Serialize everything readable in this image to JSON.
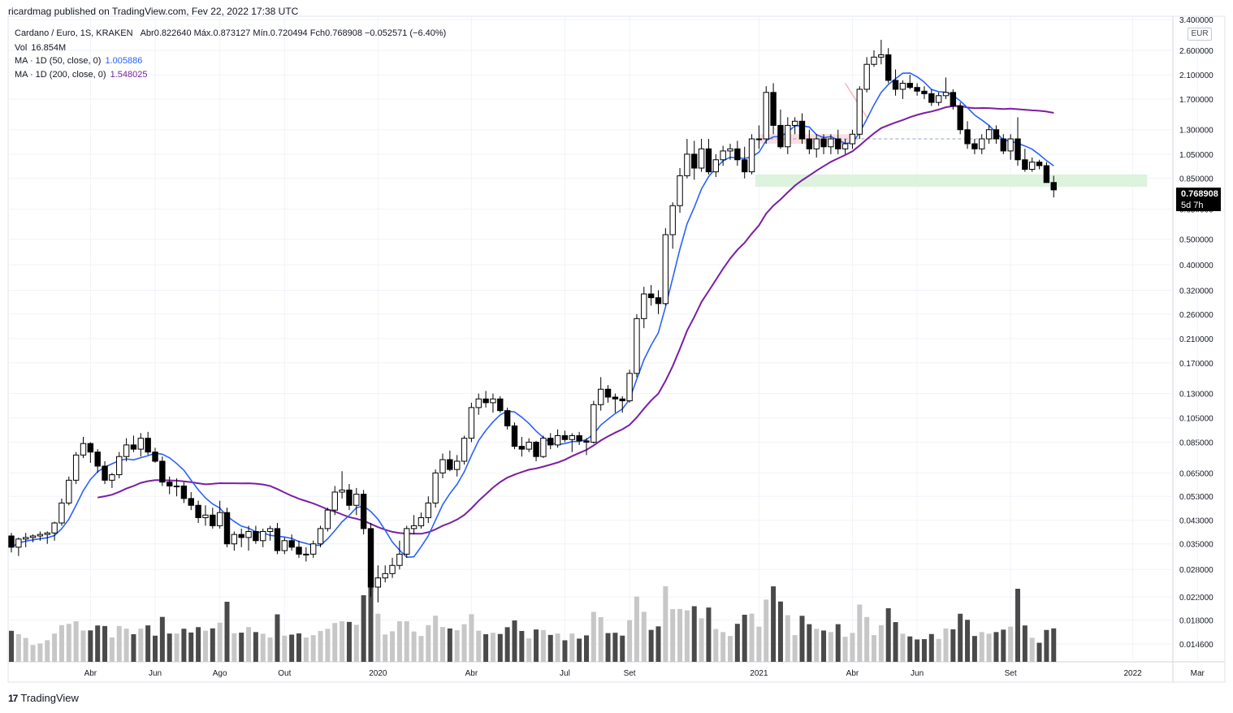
{
  "header": {
    "published": "ricardmag published on TradingView.com, Fev 22, 2022 17:38 UTC"
  },
  "legend": {
    "symbol": "Cardano / Euro, 1S, KRAKEN",
    "ohlc_text": "Abr0.822640  Máx.0.873127  Mín.0.720494  Fch0.768908  −0.052571 (−6.40%)",
    "vol_label": "Vol",
    "vol_value": "16.854M",
    "ma50_label": "MA · 1D (50, close, 0)",
    "ma50_value": "1.005886",
    "ma200_label": "MA · 1D (200, close, 0)",
    "ma200_value": "1.548025"
  },
  "price_axis": {
    "currency": "EUR",
    "labels": [
      "3.400000",
      "2.600000",
      "2.100000",
      "1.700000",
      "1.300000",
      "1.050000",
      "0.850000",
      "0.650000",
      "0.500000",
      "0.400000",
      "0.320000",
      "0.260000",
      "0.210000",
      "0.170000",
      "0.130000",
      "0.105000",
      "0.085000",
      "0.065000",
      "0.053000",
      "0.043000",
      "0.035000",
      "0.028000",
      "0.022000",
      "0.018000",
      "0.014600"
    ]
  },
  "price_tag": {
    "price": "0.768908",
    "countdown": "5d 7h"
  },
  "time_axis": {
    "labels": [
      "Abr",
      "Jun",
      "Ago",
      "Out",
      "2020",
      "Abr",
      "Jul",
      "Set",
      "2021",
      "Abr",
      "Jun",
      "Set",
      "2022",
      "Mar"
    ]
  },
  "footer": {
    "brand": "TradingView",
    "logo_glyph": "17"
  },
  "colors": {
    "ma50": "#2962ff",
    "ma200": "#7b1fa2",
    "candle_up_fill": "#ffffff",
    "candle_down_fill": "#000000",
    "volume_up": "#c7c7c7",
    "volume_down": "#4a4a4a",
    "support_zone": "#d9f2d9",
    "resistance_zone": "#fadadd"
  },
  "chart_data": {
    "type": "candlestick",
    "timeframe": "1 week",
    "scale": "log",
    "ylim": [
      0.0125,
      3.5
    ],
    "x_ticks": [
      {
        "label": "Abr",
        "index": 11
      },
      {
        "label": "Jun",
        "index": 20
      },
      {
        "label": "Ago",
        "index": 29
      },
      {
        "label": "Out",
        "index": 38
      },
      {
        "label": "2020",
        "index": 51
      },
      {
        "label": "Abr",
        "index": 64
      },
      {
        "label": "Jul",
        "index": 77
      },
      {
        "label": "Set",
        "index": 86
      },
      {
        "label": "2021",
        "index": 104
      },
      {
        "label": "Abr",
        "index": 117
      },
      {
        "label": "Jun",
        "index": 126
      },
      {
        "label": "Set",
        "index": 139
      },
      {
        "label": "2022",
        "index": 156
      },
      {
        "label": "Mar",
        "index": 165
      }
    ],
    "candles": [
      [
        0.0375,
        0.0385,
        0.0325,
        0.034
      ],
      [
        0.034,
        0.037,
        0.0315,
        0.0365
      ],
      [
        0.0365,
        0.0385,
        0.034,
        0.037
      ],
      [
        0.037,
        0.038,
        0.0355,
        0.0375
      ],
      [
        0.0375,
        0.039,
        0.036,
        0.038
      ],
      [
        0.038,
        0.039,
        0.035,
        0.0385
      ],
      [
        0.0385,
        0.0425,
        0.036,
        0.042
      ],
      [
        0.042,
        0.052,
        0.041,
        0.05
      ],
      [
        0.05,
        0.063,
        0.049,
        0.061
      ],
      [
        0.061,
        0.078,
        0.059,
        0.076
      ],
      [
        0.076,
        0.089,
        0.074,
        0.084
      ],
      [
        0.084,
        0.085,
        0.071,
        0.078
      ],
      [
        0.078,
        0.08,
        0.065,
        0.069
      ],
      [
        0.069,
        0.072,
        0.059,
        0.061
      ],
      [
        0.061,
        0.065,
        0.057,
        0.064
      ],
      [
        0.064,
        0.078,
        0.062,
        0.075
      ],
      [
        0.075,
        0.088,
        0.072,
        0.083
      ],
      [
        0.083,
        0.09,
        0.078,
        0.08
      ],
      [
        0.08,
        0.092,
        0.075,
        0.088
      ],
      [
        0.088,
        0.093,
        0.076,
        0.078
      ],
      [
        0.078,
        0.081,
        0.071,
        0.072
      ],
      [
        0.072,
        0.075,
        0.058,
        0.06
      ],
      [
        0.06,
        0.063,
        0.054,
        0.058
      ],
      [
        0.058,
        0.062,
        0.053,
        0.058
      ],
      [
        0.058,
        0.06,
        0.05,
        0.052
      ],
      [
        0.052,
        0.055,
        0.047,
        0.049
      ],
      [
        0.049,
        0.051,
        0.042,
        0.044
      ],
      [
        0.044,
        0.049,
        0.041,
        0.045
      ],
      [
        0.045,
        0.048,
        0.04,
        0.041
      ],
      [
        0.041,
        0.051,
        0.04,
        0.046
      ],
      [
        0.046,
        0.048,
        0.034,
        0.035
      ],
      [
        0.035,
        0.039,
        0.033,
        0.038
      ],
      [
        0.038,
        0.04,
        0.034,
        0.037
      ],
      [
        0.037,
        0.041,
        0.033,
        0.039
      ],
      [
        0.039,
        0.041,
        0.035,
        0.036
      ],
      [
        0.036,
        0.04,
        0.034,
        0.039
      ],
      [
        0.039,
        0.041,
        0.036,
        0.04
      ],
      [
        0.04,
        0.042,
        0.032,
        0.033
      ],
      [
        0.033,
        0.037,
        0.032,
        0.036
      ],
      [
        0.036,
        0.038,
        0.033,
        0.034
      ],
      [
        0.034,
        0.036,
        0.031,
        0.032
      ],
      [
        0.032,
        0.034,
        0.03,
        0.032
      ],
      [
        0.032,
        0.036,
        0.031,
        0.035
      ],
      [
        0.035,
        0.041,
        0.034,
        0.04
      ],
      [
        0.04,
        0.048,
        0.039,
        0.047
      ],
      [
        0.047,
        0.058,
        0.045,
        0.055
      ],
      [
        0.055,
        0.066,
        0.052,
        0.056
      ],
      [
        0.056,
        0.059,
        0.047,
        0.049
      ],
      [
        0.049,
        0.057,
        0.045,
        0.054
      ],
      [
        0.054,
        0.056,
        0.038,
        0.04
      ],
      [
        0.04,
        0.042,
        0.022,
        0.024
      ],
      [
        0.024,
        0.029,
        0.021,
        0.026
      ],
      [
        0.026,
        0.029,
        0.025,
        0.027
      ],
      [
        0.027,
        0.031,
        0.026,
        0.029
      ],
      [
        0.029,
        0.036,
        0.028,
        0.032
      ],
      [
        0.032,
        0.041,
        0.031,
        0.04
      ],
      [
        0.04,
        0.045,
        0.038,
        0.041
      ],
      [
        0.041,
        0.046,
        0.04,
        0.044
      ],
      [
        0.044,
        0.053,
        0.042,
        0.05
      ],
      [
        0.05,
        0.067,
        0.048,
        0.065
      ],
      [
        0.065,
        0.077,
        0.062,
        0.073
      ],
      [
        0.073,
        0.079,
        0.066,
        0.067
      ],
      [
        0.067,
        0.076,
        0.063,
        0.072
      ],
      [
        0.072,
        0.09,
        0.07,
        0.088
      ],
      [
        0.088,
        0.12,
        0.085,
        0.115
      ],
      [
        0.115,
        0.13,
        0.108,
        0.124
      ],
      [
        0.124,
        0.133,
        0.115,
        0.12
      ],
      [
        0.12,
        0.13,
        0.11,
        0.124
      ],
      [
        0.124,
        0.127,
        0.11,
        0.112
      ],
      [
        0.112,
        0.115,
        0.095,
        0.098
      ],
      [
        0.098,
        0.101,
        0.08,
        0.082
      ],
      [
        0.082,
        0.089,
        0.075,
        0.08
      ],
      [
        0.08,
        0.088,
        0.078,
        0.085
      ],
      [
        0.085,
        0.086,
        0.072,
        0.075
      ],
      [
        0.075,
        0.09,
        0.074,
        0.088
      ],
      [
        0.088,
        0.092,
        0.08,
        0.083
      ],
      [
        0.083,
        0.095,
        0.081,
        0.09
      ],
      [
        0.09,
        0.094,
        0.085,
        0.087
      ],
      [
        0.087,
        0.092,
        0.078,
        0.09
      ],
      [
        0.09,
        0.093,
        0.083,
        0.086
      ],
      [
        0.086,
        0.088,
        0.076,
        0.085
      ],
      [
        0.085,
        0.122,
        0.084,
        0.118
      ],
      [
        0.118,
        0.15,
        0.112,
        0.135
      ],
      [
        0.135,
        0.14,
        0.12,
        0.126
      ],
      [
        0.126,
        0.13,
        0.11,
        0.124
      ],
      [
        0.124,
        0.127,
        0.11,
        0.122
      ],
      [
        0.122,
        0.16,
        0.12,
        0.155
      ],
      [
        0.155,
        0.26,
        0.15,
        0.25
      ],
      [
        0.25,
        0.33,
        0.23,
        0.31
      ],
      [
        0.31,
        0.335,
        0.28,
        0.3
      ],
      [
        0.3,
        0.32,
        0.26,
        0.285
      ],
      [
        0.285,
        0.55,
        0.28,
        0.52
      ],
      [
        0.52,
        0.69,
        0.46,
        0.67
      ],
      [
        0.67,
        0.93,
        0.63,
        0.87
      ],
      [
        0.87,
        1.2,
        0.85,
        1.05
      ],
      [
        1.05,
        1.18,
        0.84,
        0.93
      ],
      [
        0.93,
        1.2,
        0.9,
        1.1
      ],
      [
        1.1,
        1.2,
        0.88,
        0.9
      ],
      [
        0.9,
        1.05,
        0.86,
        1.0
      ],
      [
        1.0,
        1.13,
        0.95,
        1.08
      ],
      [
        1.08,
        1.15,
        1.0,
        1.1
      ],
      [
        1.1,
        1.18,
        0.95,
        1.0
      ],
      [
        1.0,
        1.12,
        0.85,
        0.9
      ],
      [
        0.9,
        1.25,
        0.88,
        1.2
      ],
      [
        1.2,
        1.35,
        1.1,
        1.2
      ],
      [
        1.2,
        1.9,
        1.15,
        1.8
      ],
      [
        1.8,
        1.95,
        1.25,
        1.35
      ],
      [
        1.35,
        1.55,
        1.1,
        1.12
      ],
      [
        1.12,
        1.45,
        1.05,
        1.35
      ],
      [
        1.35,
        1.45,
        1.25,
        1.4
      ],
      [
        1.4,
        1.5,
        1.15,
        1.2
      ],
      [
        1.2,
        1.3,
        1.05,
        1.1
      ],
      [
        1.1,
        1.25,
        1.02,
        1.2
      ],
      [
        1.2,
        1.25,
        1.05,
        1.12
      ],
      [
        1.12,
        1.25,
        1.05,
        1.2
      ],
      [
        1.2,
        1.3,
        1.05,
        1.1
      ],
      [
        1.1,
        1.2,
        1.05,
        1.15
      ],
      [
        1.15,
        1.3,
        1.1,
        1.25
      ],
      [
        1.25,
        1.9,
        1.2,
        1.85
      ],
      [
        1.85,
        2.45,
        1.8,
        2.3
      ],
      [
        2.3,
        2.6,
        2.25,
        2.45
      ],
      [
        2.45,
        2.85,
        2.3,
        2.5
      ],
      [
        2.5,
        2.65,
        1.95,
        2.0
      ],
      [
        2.0,
        2.2,
        1.75,
        1.85
      ],
      [
        1.85,
        2.0,
        1.7,
        1.95
      ],
      [
        1.95,
        2.1,
        1.85,
        1.88
      ],
      [
        1.88,
        1.95,
        1.75,
        1.82
      ],
      [
        1.82,
        1.9,
        1.7,
        1.78
      ],
      [
        1.78,
        1.85,
        1.6,
        1.65
      ],
      [
        1.65,
        1.8,
        1.6,
        1.75
      ],
      [
        1.75,
        2.05,
        1.7,
        1.8
      ],
      [
        1.8,
        1.85,
        1.55,
        1.6
      ],
      [
        1.6,
        1.65,
        1.25,
        1.3
      ],
      [
        1.3,
        1.4,
        1.1,
        1.15
      ],
      [
        1.15,
        1.2,
        1.05,
        1.1
      ],
      [
        1.1,
        1.25,
        1.05,
        1.2
      ],
      [
        1.2,
        1.35,
        1.15,
        1.3
      ],
      [
        1.3,
        1.35,
        1.15,
        1.2
      ],
      [
        1.2,
        1.25,
        1.05,
        1.08
      ],
      [
        1.08,
        1.25,
        1.0,
        1.2
      ],
      [
        1.2,
        1.45,
        0.95,
        1.0
      ],
      [
        1.0,
        1.1,
        0.9,
        0.92
      ],
      [
        0.92,
        1.02,
        0.9,
        0.98
      ],
      [
        0.98,
        1.0,
        0.92,
        0.95
      ],
      [
        0.95,
        0.98,
        0.83,
        0.82
      ],
      [
        0.82,
        0.87,
        0.72,
        0.769
      ]
    ],
    "resistance_zone_eur": [
      1.15,
      1.25
    ],
    "support_zone_eur": [
      0.79,
      0.88
    ]
  }
}
